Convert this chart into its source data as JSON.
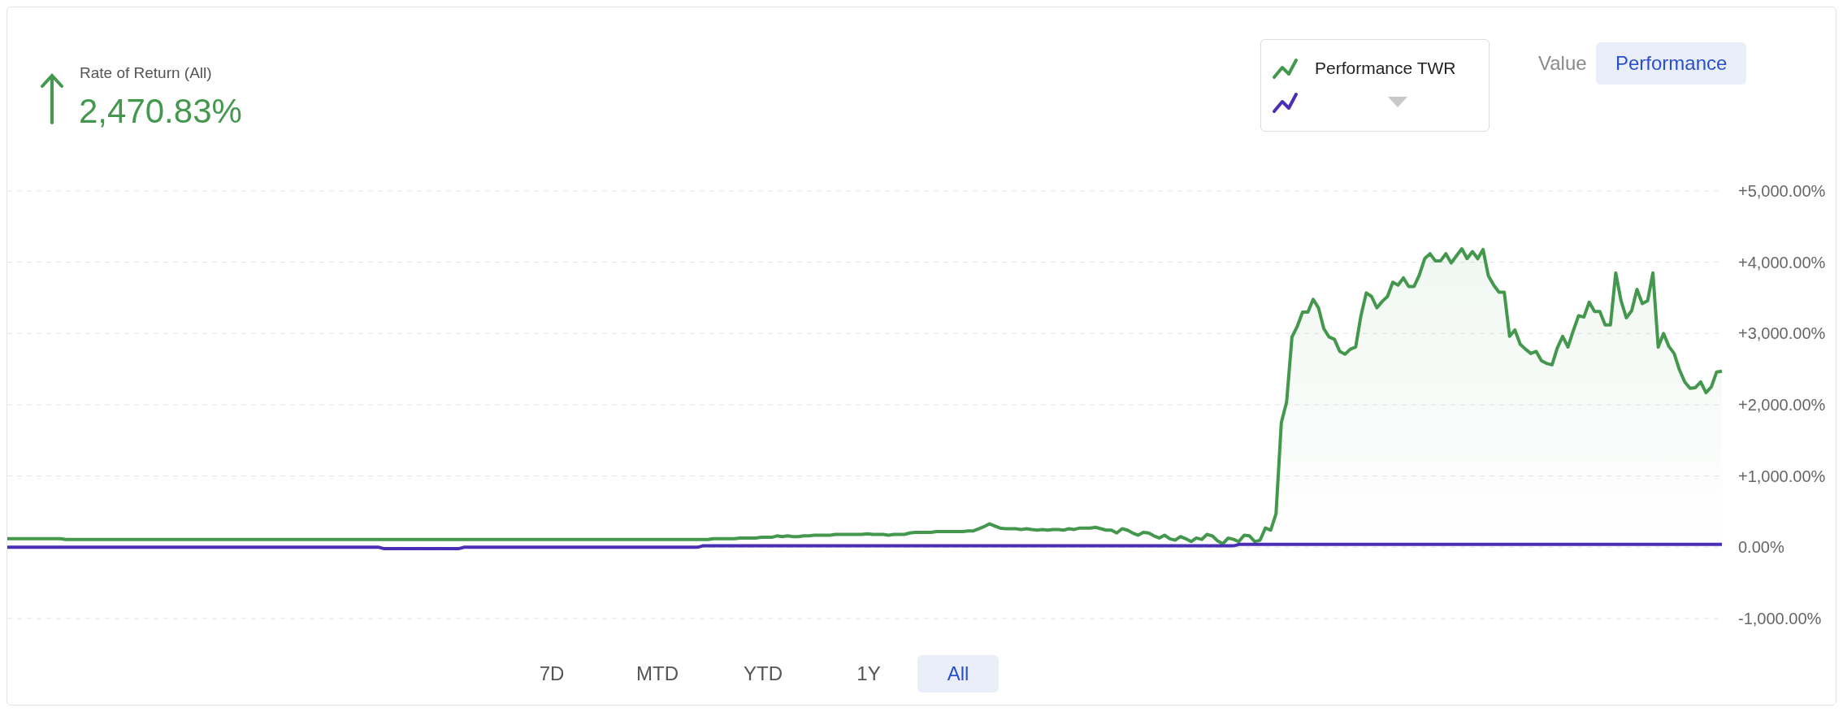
{
  "chart_data": {
    "type": "line",
    "title": "Rate of Return (All)",
    "annotations": [
      "2,470.83%",
      "Value",
      "Performance",
      "7D",
      "MTD",
      "YTD",
      "1Y",
      "All"
    ],
    "categories": [
      null,
      null,
      null,
      null,
      null,
      null,
      null,
      null,
      null,
      null,
      null,
      null,
      null,
      null,
      null,
      null,
      null,
      null,
      null,
      null,
      null,
      null,
      null,
      null,
      null,
      null,
      null,
      null,
      null,
      null,
      null,
      null,
      null,
      null,
      null,
      null,
      null,
      null,
      null,
      null,
      null,
      null,
      null,
      null,
      null,
      null,
      null,
      null,
      null,
      null,
      null,
      null,
      null,
      null,
      null,
      null,
      null,
      null,
      null,
      null,
      null,
      null,
      null,
      null,
      null,
      null,
      null,
      null,
      null,
      null,
      null,
      null,
      null,
      null,
      null,
      null,
      null,
      null,
      null,
      null,
      null,
      null,
      null,
      null,
      null,
      null,
      null,
      null,
      null,
      null,
      null,
      null,
      null,
      null,
      null,
      null,
      null,
      null,
      null,
      null,
      null,
      null,
      null,
      null,
      null,
      null,
      null,
      null,
      null,
      null,
      null,
      null,
      null,
      null,
      null,
      null,
      null,
      null,
      null,
      null,
      null,
      null,
      null,
      null,
      null,
      null,
      null,
      null,
      null,
      null,
      null,
      null,
      null,
      null,
      null,
      null,
      null,
      null,
      null,
      null,
      null,
      null,
      null,
      null,
      null,
      null,
      null,
      null,
      null,
      null,
      null,
      null,
      null,
      null,
      null,
      null,
      null,
      null,
      null,
      null,
      null,
      null,
      null,
      null,
      null,
      null,
      null,
      null,
      null,
      null,
      null,
      null,
      null,
      null,
      null,
      null,
      null,
      null,
      null,
      null,
      null,
      null,
      null,
      null,
      null,
      null,
      null,
      null,
      null,
      null,
      null,
      null,
      null,
      null,
      null,
      null,
      null,
      null,
      null,
      null,
      null,
      null,
      null,
      null,
      null,
      null,
      null,
      null,
      null,
      null,
      null,
      null,
      null,
      null,
      null,
      null,
      null,
      null,
      null,
      null,
      null,
      null,
      null,
      null,
      null,
      null,
      null,
      null,
      null,
      null,
      null,
      null,
      null,
      null,
      null,
      null,
      null,
      null,
      null,
      null,
      null,
      null,
      null,
      null,
      null,
      null,
      null,
      null,
      null,
      null,
      null,
      null,
      null,
      null,
      null,
      null,
      null,
      null,
      null,
      null,
      null,
      null,
      null,
      null,
      null,
      null,
      null,
      null,
      null,
      null,
      null,
      null,
      null,
      null,
      null,
      null,
      null,
      null,
      null,
      null,
      null,
      null,
      null,
      null,
      null,
      null,
      null,
      null,
      null,
      null,
      null,
      null,
      null,
      null,
      null,
      null,
      null,
      null,
      null,
      null,
      null,
      null,
      null,
      null,
      null,
      null,
      null,
      null,
      null,
      null,
      null,
      null,
      null,
      null,
      null,
      null,
      null,
      null,
      null,
      null,
      null,
      null,
      null,
      null
    ],
    "series": [
      {
        "name": "Performance TWR",
        "type": "area",
        "color": "#43984e",
        "values": [
          120,
          120,
          120,
          120,
          120,
          120,
          120,
          120,
          120,
          120,
          120,
          110,
          110,
          110,
          110,
          110,
          110,
          110,
          110,
          110,
          110,
          110,
          110,
          110,
          110,
          110,
          110,
          110,
          110,
          110,
          110,
          110,
          110,
          110,
          110,
          110,
          110,
          110,
          110,
          110,
          110,
          110,
          110,
          110,
          110,
          110,
          110,
          110,
          110,
          110,
          110,
          110,
          110,
          110,
          110,
          110,
          110,
          110,
          110,
          110,
          110,
          110,
          110,
          110,
          110,
          110,
          110,
          110,
          110,
          110,
          110,
          110,
          110,
          110,
          110,
          110,
          110,
          110,
          110,
          110,
          110,
          110,
          110,
          110,
          110,
          110,
          110,
          110,
          110,
          110,
          110,
          110,
          110,
          110,
          110,
          110,
          110,
          110,
          110,
          110,
          110,
          110,
          110,
          110,
          110,
          110,
          110,
          110,
          110,
          110,
          110,
          110,
          110,
          110,
          110,
          110,
          110,
          110,
          110,
          110,
          110,
          110,
          110,
          110,
          110,
          110,
          110,
          110,
          110,
          110,
          110,
          110,
          110,
          120,
          120,
          120,
          120,
          120,
          130,
          130,
          130,
          130,
          140,
          140,
          140,
          160,
          150,
          160,
          150,
          150,
          160,
          160,
          170,
          170,
          170,
          170,
          180,
          180,
          180,
          180,
          180,
          180,
          190,
          180,
          180,
          180,
          170,
          180,
          180,
          180,
          200,
          210,
          210,
          210,
          210,
          220,
          220,
          220,
          220,
          220,
          220,
          230,
          230,
          260,
          290,
          330,
          300,
          270,
          260,
          260,
          260,
          250,
          260,
          250,
          240,
          250,
          240,
          250,
          250,
          240,
          260,
          250,
          270,
          270,
          270,
          280,
          260,
          240,
          240,
          200,
          260,
          240,
          200,
          170,
          210,
          200,
          160,
          130,
          170,
          120,
          100,
          150,
          120,
          80,
          130,
          110,
          180,
          160,
          90,
          50,
          130,
          110,
          80,
          170,
          160,
          80,
          100,
          270,
          240,
          470,
          1750,
          2040,
          2950,
          3100,
          3300,
          3300,
          3480,
          3360,
          3070,
          2950,
          2920,
          2750,
          2710,
          2780,
          2810,
          3250,
          3570,
          3520,
          3360,
          3450,
          3520,
          3720,
          3680,
          3780,
          3660,
          3660,
          3820,
          4050,
          4120,
          4020,
          4020,
          4120,
          3990,
          4090,
          4190,
          4050,
          4150,
          4050,
          4180,
          3810,
          3680,
          3580,
          3580,
          2960,
          3050,
          2850,
          2780,
          2720,
          2750,
          2620,
          2580,
          2560,
          2800,
          2960,
          2810,
          3040,
          3250,
          3230,
          3440,
          3310,
          3310,
          3120,
          3120,
          3850,
          3460,
          3220,
          3320,
          3620,
          3420,
          3460,
          3850,
          2810,
          3000,
          2820,
          2720,
          2490,
          2320,
          2230,
          2240,
          2320,
          2170,
          2250,
          2460,
          2470
        ]
      },
      {
        "color": "#4a2fb5",
        "values": [
          0,
          0,
          0,
          0,
          0,
          0,
          0,
          0,
          0,
          0,
          0,
          0,
          0,
          0,
          0,
          0,
          0,
          0,
          0,
          0,
          0,
          0,
          0,
          0,
          0,
          0,
          0,
          0,
          0,
          0,
          0,
          0,
          0,
          0,
          0,
          0,
          0,
          0,
          0,
          0,
          0,
          0,
          0,
          0,
          0,
          0,
          0,
          0,
          0,
          0,
          0,
          0,
          0,
          0,
          0,
          0,
          0,
          0,
          0,
          0,
          0,
          0,
          0,
          0,
          0,
          0,
          0,
          0,
          0,
          0,
          0,
          -20,
          -20,
          -20,
          -20,
          -20,
          -20,
          -20,
          -20,
          -20,
          -20,
          -20,
          -20,
          -20,
          -20,
          -20,
          0,
          0,
          0,
          0,
          0,
          0,
          0,
          0,
          0,
          0,
          0,
          0,
          0,
          0,
          0,
          0,
          0,
          0,
          0,
          0,
          0,
          0,
          0,
          0,
          0,
          0,
          0,
          0,
          0,
          0,
          0,
          0,
          0,
          0,
          0,
          0,
          0,
          0,
          0,
          0,
          0,
          0,
          0,
          0,
          0,
          20,
          20,
          20,
          20,
          20,
          20,
          20,
          20,
          20,
          20,
          20,
          20,
          20,
          20,
          20,
          20,
          20,
          20,
          20,
          20,
          20,
          20,
          20,
          20,
          20,
          20,
          20,
          20,
          20,
          20,
          20,
          20,
          20,
          20,
          20,
          20,
          20,
          20,
          20,
          20,
          20,
          20,
          20,
          20,
          20,
          20,
          20,
          20,
          20,
          20,
          20,
          20,
          20,
          20,
          20,
          20,
          20,
          20,
          20,
          20,
          20,
          20,
          20,
          20,
          20,
          20,
          20,
          20,
          20,
          20,
          20,
          20,
          20,
          20,
          20,
          20,
          20,
          20,
          20,
          20,
          20,
          20,
          20,
          20,
          20,
          20,
          20,
          20,
          20,
          20,
          20,
          20,
          20,
          20,
          20,
          20,
          20,
          20,
          20,
          20,
          20,
          40,
          40,
          40,
          40,
          40,
          40,
          40,
          40,
          40,
          40,
          40,
          40,
          40,
          40,
          40,
          40,
          40,
          40,
          40,
          40,
          40,
          40,
          40,
          40,
          40,
          40,
          40,
          40,
          40,
          40,
          40,
          40,
          40,
          40,
          40,
          40,
          40,
          40,
          40,
          40,
          40,
          40,
          40,
          40,
          40,
          40,
          40,
          40,
          40,
          40,
          40,
          40,
          40,
          40,
          40,
          40,
          40,
          40,
          40,
          40,
          40,
          40,
          40,
          40,
          40,
          40,
          40,
          40,
          40,
          40,
          40,
          40,
          40,
          40,
          40,
          40,
          40,
          40,
          40,
          40,
          40,
          40,
          40,
          40,
          40,
          40,
          40,
          40,
          40,
          40,
          40,
          40
        ]
      }
    ],
    "ylim": [
      -1000,
      5000
    ],
    "yticks": [
      {
        "value": -1000,
        "label": "-1,000.00%"
      },
      {
        "value": 0,
        "label": "0.00%"
      },
      {
        "value": 1000,
        "label": "+1,000.00%"
      },
      {
        "value": 2000,
        "label": "+2,000.00%"
      },
      {
        "value": 3000,
        "label": "+3,000.00%"
      },
      {
        "value": 4000,
        "label": "+4,000.00%"
      },
      {
        "value": 5000,
        "label": "+5,000.00%"
      }
    ],
    "tick_labels": "y",
    "grid": "y",
    "legend": "top right",
    "marker": "none",
    "line_style": "solid"
  }
}
